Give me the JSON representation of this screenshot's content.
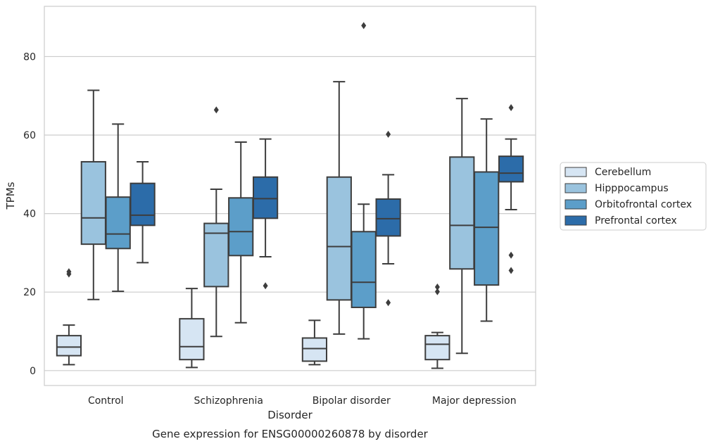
{
  "chart_data": {
    "type": "box",
    "title": "Gene expression for ENSG00000260878 by disorder",
    "xlabel": "Disorder",
    "ylabel": "TPMs",
    "categories": [
      "Control",
      "Schizophrenia",
      "Bipolar disorder",
      "Major depression"
    ],
    "ylim": [
      -3.8,
      92.8
    ],
    "yticks": [
      0,
      20,
      40,
      60,
      80
    ],
    "grid": "horizontal",
    "legend_position": "right",
    "series": [
      {
        "name": "Cerebellum",
        "color": "#d6e5f3",
        "boxes": [
          {
            "whisker_low": 1.5,
            "q1": 3.8,
            "median": 6.0,
            "q3": 8.9,
            "whisker_high": 11.6,
            "outliers": [
              24.6,
              25.2
            ]
          },
          {
            "whisker_low": 0.8,
            "q1": 2.8,
            "median": 6.1,
            "q3": 13.2,
            "whisker_high": 20.9,
            "outliers": []
          },
          {
            "whisker_low": 1.5,
            "q1": 2.4,
            "median": 5.6,
            "q3": 8.3,
            "whisker_high": 12.8,
            "outliers": []
          },
          {
            "whisker_low": 0.6,
            "q1": 2.8,
            "median": 6.7,
            "q3": 8.9,
            "whisker_high": 9.7,
            "outliers": [
              20.1,
              21.3
            ]
          }
        ]
      },
      {
        "name": "Hipppocampus",
        "color": "#9ac3de",
        "boxes": [
          {
            "whisker_low": 18.1,
            "q1": 32.2,
            "median": 38.9,
            "q3": 53.2,
            "whisker_high": 71.4,
            "outliers": []
          },
          {
            "whisker_low": 8.7,
            "q1": 21.4,
            "median": 35.0,
            "q3": 37.5,
            "whisker_high": 46.2,
            "outliers": [
              66.4
            ]
          },
          {
            "whisker_low": 9.3,
            "q1": 18.0,
            "median": 31.6,
            "q3": 49.3,
            "whisker_high": 73.6,
            "outliers": []
          },
          {
            "whisker_low": 4.4,
            "q1": 25.9,
            "median": 37.0,
            "q3": 54.4,
            "whisker_high": 69.3,
            "outliers": []
          }
        ]
      },
      {
        "name": "Orbitofrontal cortex",
        "color": "#5c9ec9",
        "boxes": [
          {
            "whisker_low": 20.2,
            "q1": 31.1,
            "median": 34.8,
            "q3": 44.2,
            "whisker_high": 62.8,
            "outliers": []
          },
          {
            "whisker_low": 12.2,
            "q1": 29.3,
            "median": 35.4,
            "q3": 44.0,
            "whisker_high": 58.2,
            "outliers": []
          },
          {
            "whisker_low": 8.1,
            "q1": 16.1,
            "median": 22.5,
            "q3": 35.4,
            "whisker_high": 42.4,
            "outliers": [
              87.9
            ]
          },
          {
            "whisker_low": 12.6,
            "q1": 21.8,
            "median": 36.5,
            "q3": 50.6,
            "whisker_high": 64.1,
            "outliers": []
          }
        ]
      },
      {
        "name": "Prefrontal cortex",
        "color": "#2c6ca9",
        "boxes": [
          {
            "whisker_low": 27.5,
            "q1": 37.0,
            "median": 39.6,
            "q3": 47.7,
            "whisker_high": 53.2,
            "outliers": []
          },
          {
            "whisker_low": 29.0,
            "q1": 38.8,
            "median": 43.8,
            "q3": 49.3,
            "whisker_high": 59.0,
            "outliers": [
              21.6
            ]
          },
          {
            "whisker_low": 27.2,
            "q1": 34.3,
            "median": 38.7,
            "q3": 43.7,
            "whisker_high": 49.9,
            "outliers": [
              17.3,
              60.2
            ]
          },
          {
            "whisker_low": 41.0,
            "q1": 48.1,
            "median": 50.3,
            "q3": 54.6,
            "whisker_high": 59.0,
            "outliers": [
              25.5,
              29.4,
              67.0
            ]
          }
        ]
      }
    ]
  }
}
